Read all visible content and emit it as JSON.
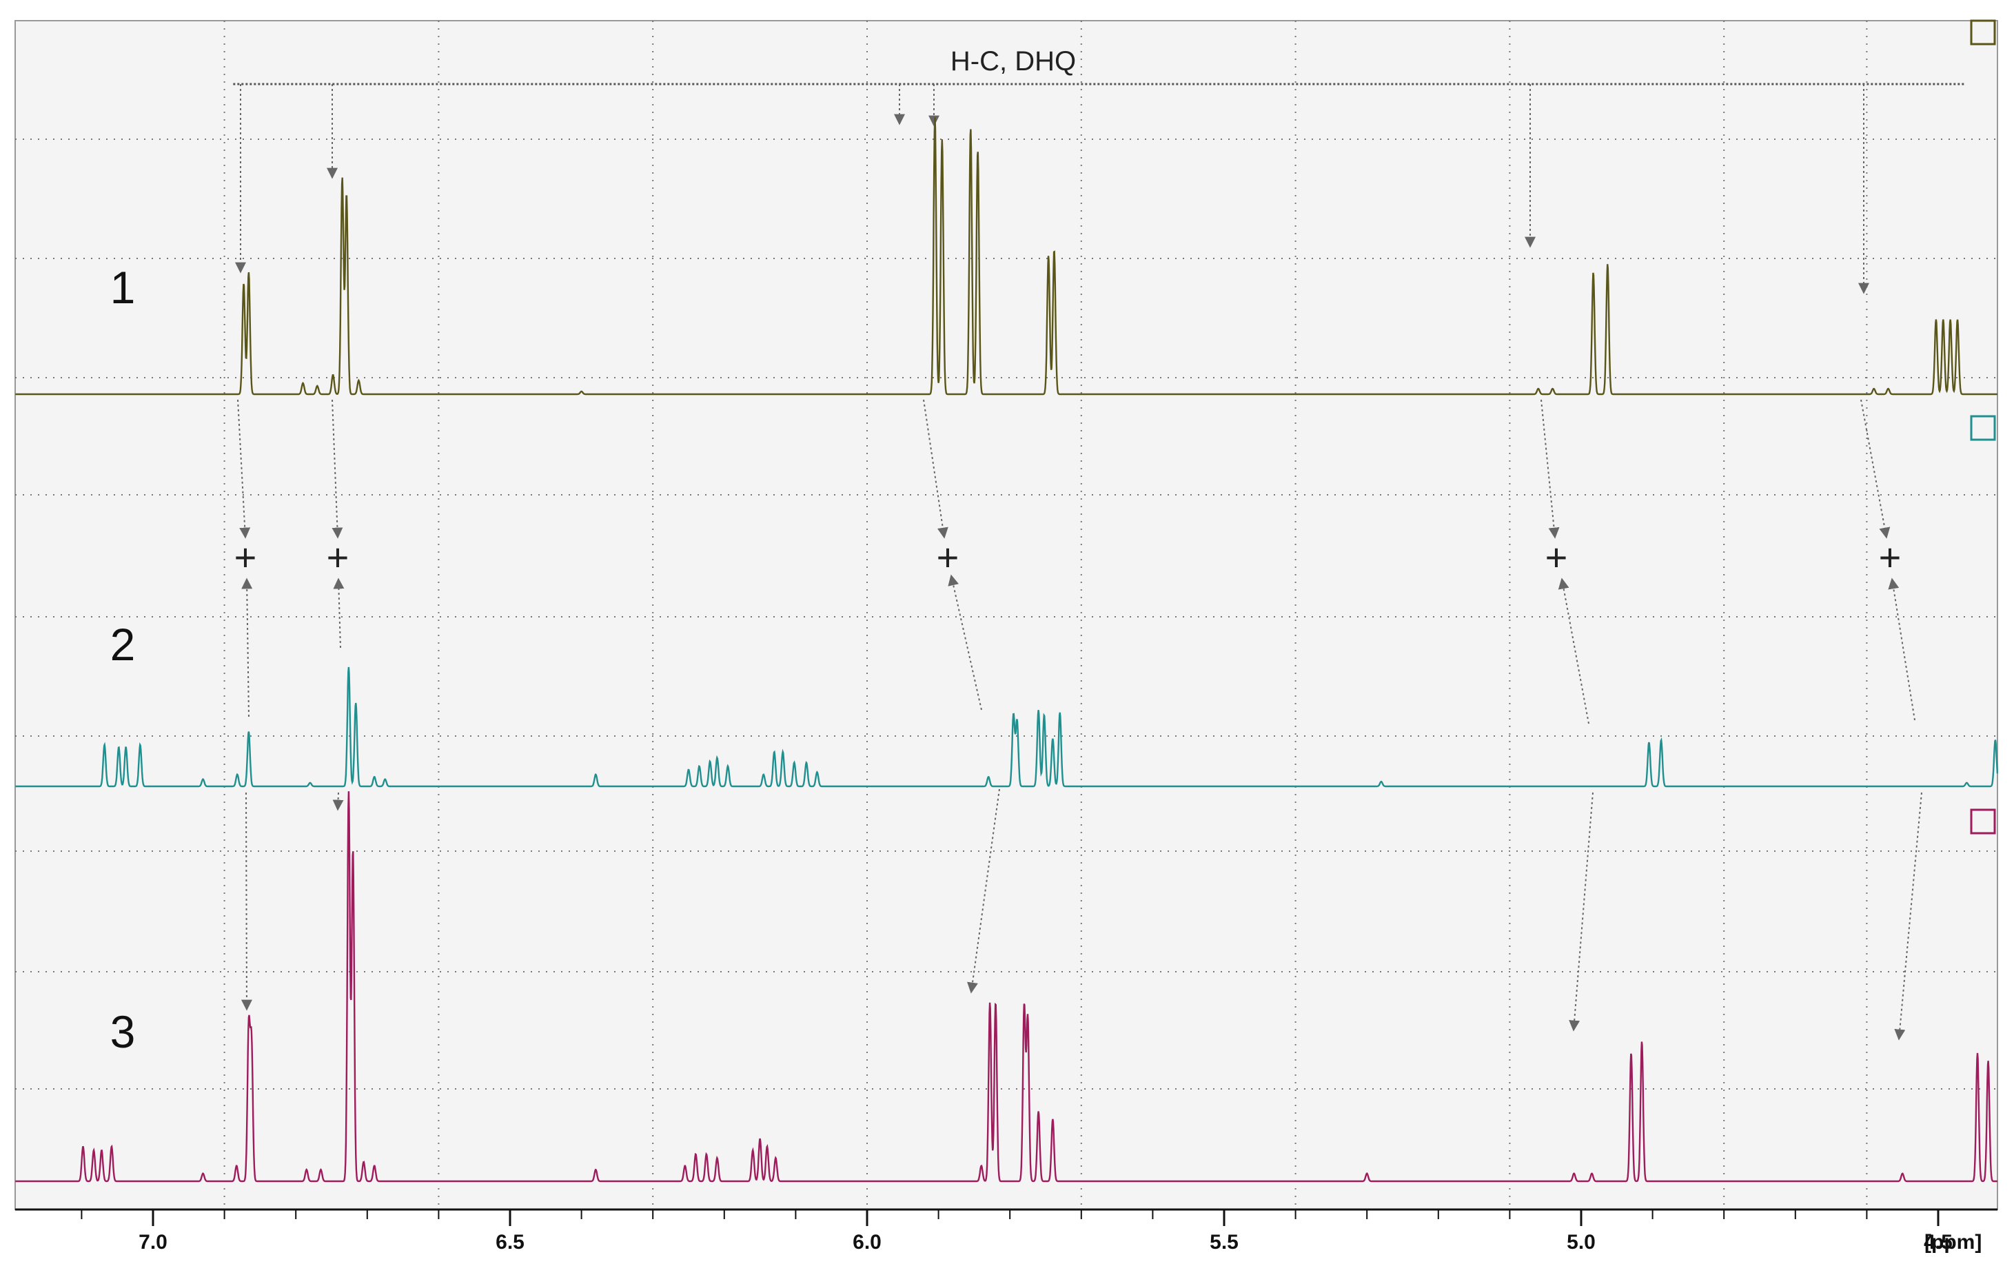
{
  "chart_data": {
    "type": "line",
    "x_axis": {
      "unit_label": "[ppm]",
      "range": [
        7.2,
        4.3
      ],
      "reversed": true,
      "ticks": [
        {
          "value": 7.0,
          "label": "7.0"
        },
        {
          "value": 6.5,
          "label": "6.5"
        },
        {
          "value": 6.0,
          "label": "6.0"
        },
        {
          "value": 5.5,
          "label": "5.5"
        },
        {
          "value": 5.0,
          "label": "5.0"
        },
        {
          "value": 4.5,
          "label": "4.5"
        }
      ]
    },
    "grid": {
      "visible": true,
      "style": "dotted",
      "x_lines": [
        6.9,
        6.6,
        6.3,
        6.0,
        5.7,
        5.4,
        5.1,
        4.8,
        4.6
      ]
    },
    "annotation": {
      "text": "H-C, DHQ",
      "bracket_from": 6.88,
      "bracket_to": 4.47
    },
    "series": [
      {
        "label": "1",
        "color": "#5a5518",
        "peaks": [
          {
            "ppm": 6.873,
            "h": 0.4
          },
          {
            "ppm": 6.866,
            "h": 0.44
          },
          {
            "ppm": 6.79,
            "h": 0.04
          },
          {
            "ppm": 6.77,
            "h": 0.03
          },
          {
            "ppm": 6.748,
            "h": 0.07
          },
          {
            "ppm": 6.735,
            "h": 0.78
          },
          {
            "ppm": 6.729,
            "h": 0.72
          },
          {
            "ppm": 6.712,
            "h": 0.05
          },
          {
            "ppm": 6.4,
            "h": 0.01
          },
          {
            "ppm": 5.905,
            "h": 1.0
          },
          {
            "ppm": 5.895,
            "h": 0.92
          },
          {
            "ppm": 5.855,
            "h": 0.96
          },
          {
            "ppm": 5.845,
            "h": 0.88
          },
          {
            "ppm": 5.746,
            "h": 0.5
          },
          {
            "ppm": 5.738,
            "h": 0.52
          },
          {
            "ppm": 5.06,
            "h": 0.02
          },
          {
            "ppm": 5.04,
            "h": 0.02
          },
          {
            "ppm": 4.983,
            "h": 0.44
          },
          {
            "ppm": 4.963,
            "h": 0.47
          },
          {
            "ppm": 4.59,
            "h": 0.02
          },
          {
            "ppm": 4.57,
            "h": 0.02
          },
          {
            "ppm": 4.503,
            "h": 0.27
          },
          {
            "ppm": 4.493,
            "h": 0.27
          },
          {
            "ppm": 4.483,
            "h": 0.27
          },
          {
            "ppm": 4.473,
            "h": 0.27
          }
        ]
      },
      {
        "label": "2",
        "color": "#1f8f8f",
        "peaks": [
          {
            "ppm": 7.068,
            "h": 0.35
          },
          {
            "ppm": 7.048,
            "h": 0.33
          },
          {
            "ppm": 7.038,
            "h": 0.33
          },
          {
            "ppm": 7.018,
            "h": 0.35
          },
          {
            "ppm": 6.93,
            "h": 0.06
          },
          {
            "ppm": 6.882,
            "h": 0.1
          },
          {
            "ppm": 6.866,
            "h": 0.46
          },
          {
            "ppm": 6.78,
            "h": 0.03
          },
          {
            "ppm": 6.726,
            "h": 1.0
          },
          {
            "ppm": 6.716,
            "h": 0.7
          },
          {
            "ppm": 6.69,
            "h": 0.08
          },
          {
            "ppm": 6.675,
            "h": 0.06
          },
          {
            "ppm": 6.38,
            "h": 0.1
          },
          {
            "ppm": 6.25,
            "h": 0.14
          },
          {
            "ppm": 6.235,
            "h": 0.17
          },
          {
            "ppm": 6.22,
            "h": 0.21
          },
          {
            "ppm": 6.21,
            "h": 0.24
          },
          {
            "ppm": 6.195,
            "h": 0.17
          },
          {
            "ppm": 6.145,
            "h": 0.1
          },
          {
            "ppm": 6.13,
            "h": 0.29
          },
          {
            "ppm": 6.118,
            "h": 0.29
          },
          {
            "ppm": 6.102,
            "h": 0.2
          },
          {
            "ppm": 6.085,
            "h": 0.2
          },
          {
            "ppm": 6.07,
            "h": 0.12
          },
          {
            "ppm": 5.83,
            "h": 0.08
          },
          {
            "ppm": 5.795,
            "h": 0.6
          },
          {
            "ppm": 5.79,
            "h": 0.55
          },
          {
            "ppm": 5.76,
            "h": 0.64
          },
          {
            "ppm": 5.752,
            "h": 0.6
          },
          {
            "ppm": 5.74,
            "h": 0.4
          },
          {
            "ppm": 5.73,
            "h": 0.62
          },
          {
            "ppm": 5.28,
            "h": 0.04
          },
          {
            "ppm": 4.905,
            "h": 0.37
          },
          {
            "ppm": 4.888,
            "h": 0.39
          },
          {
            "ppm": 4.46,
            "h": 0.03
          },
          {
            "ppm": 4.42,
            "h": 0.39
          },
          {
            "ppm": 4.403,
            "h": 0.38
          }
        ]
      },
      {
        "label": "3",
        "color": "#9e1c5c",
        "peaks": [
          {
            "ppm": 7.098,
            "h": 0.09
          },
          {
            "ppm": 7.083,
            "h": 0.08
          },
          {
            "ppm": 7.072,
            "h": 0.08
          },
          {
            "ppm": 7.058,
            "h": 0.09
          },
          {
            "ppm": 6.93,
            "h": 0.02
          },
          {
            "ppm": 6.883,
            "h": 0.04
          },
          {
            "ppm": 6.866,
            "h": 0.39
          },
          {
            "ppm": 6.862,
            "h": 0.35
          },
          {
            "ppm": 6.785,
            "h": 0.03
          },
          {
            "ppm": 6.765,
            "h": 0.03
          },
          {
            "ppm": 6.726,
            "h": 1.0
          },
          {
            "ppm": 6.72,
            "h": 0.85
          },
          {
            "ppm": 6.705,
            "h": 0.05
          },
          {
            "ppm": 6.69,
            "h": 0.04
          },
          {
            "ppm": 6.38,
            "h": 0.03
          },
          {
            "ppm": 6.255,
            "h": 0.04
          },
          {
            "ppm": 6.24,
            "h": 0.07
          },
          {
            "ppm": 6.225,
            "h": 0.07
          },
          {
            "ppm": 6.21,
            "h": 0.06
          },
          {
            "ppm": 6.16,
            "h": 0.08
          },
          {
            "ppm": 6.15,
            "h": 0.11
          },
          {
            "ppm": 6.14,
            "h": 0.09
          },
          {
            "ppm": 6.128,
            "h": 0.06
          },
          {
            "ppm": 5.84,
            "h": 0.04
          },
          {
            "ppm": 5.828,
            "h": 0.46
          },
          {
            "ppm": 5.82,
            "h": 0.46
          },
          {
            "ppm": 5.78,
            "h": 0.45
          },
          {
            "ppm": 5.775,
            "h": 0.42
          },
          {
            "ppm": 5.76,
            "h": 0.18
          },
          {
            "ppm": 5.74,
            "h": 0.16
          },
          {
            "ppm": 5.3,
            "h": 0.02
          },
          {
            "ppm": 5.01,
            "h": 0.02
          },
          {
            "ppm": 4.985,
            "h": 0.02
          },
          {
            "ppm": 4.93,
            "h": 0.33
          },
          {
            "ppm": 4.915,
            "h": 0.36
          },
          {
            "ppm": 4.55,
            "h": 0.02
          },
          {
            "ppm": 4.445,
            "h": 0.33
          },
          {
            "ppm": 4.43,
            "h": 0.31
          }
        ]
      }
    ]
  }
}
